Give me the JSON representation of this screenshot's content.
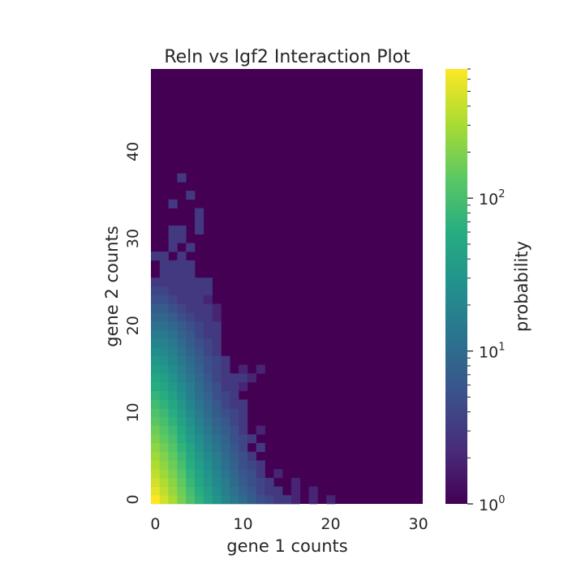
{
  "chart_data": {
    "type": "heatmap",
    "title": "Reln vs Igf2 Interaction Plot",
    "xlabel": "gene 1 counts",
    "ylabel": "gene 2 counts",
    "x_range": [
      0,
      30
    ],
    "y_range": [
      0,
      49
    ],
    "x_ticks": [
      {
        "value": 0,
        "label": "0"
      },
      {
        "value": 10,
        "label": "10"
      },
      {
        "value": 20,
        "label": "20"
      },
      {
        "value": 30,
        "label": "30"
      }
    ],
    "y_ticks": [
      {
        "value": 0,
        "label": "0"
      },
      {
        "value": 10,
        "label": "10"
      },
      {
        "value": 20,
        "label": "20"
      },
      {
        "value": 30,
        "label": "30"
      },
      {
        "value": 40,
        "label": "40"
      }
    ],
    "y_axis_origin": "bottom",
    "grid": false,
    "colormap": "viridis",
    "color_scale": "log",
    "colorbar": {
      "label": "probability",
      "min": 1,
      "max": 700,
      "major_ticks": [
        {
          "value": 1,
          "base": "10",
          "exp": "0"
        },
        {
          "value": 10,
          "base": "10",
          "exp": "1"
        },
        {
          "value": 100,
          "base": "10",
          "exp": "2"
        }
      ],
      "minor_ticks": [
        2,
        3,
        4,
        5,
        6,
        7,
        8,
        9,
        20,
        30,
        40,
        50,
        60,
        70,
        80,
        90,
        200,
        300,
        400,
        500,
        600,
        700
      ]
    },
    "background_value": 1,
    "cells_note_format": "[gene1_count, gene2_count, value]",
    "cells": [
      [
        0,
        0,
        700
      ],
      [
        1,
        0,
        450
      ],
      [
        2,
        0,
        300
      ],
      [
        3,
        0,
        180
      ],
      [
        4,
        0,
        110
      ],
      [
        5,
        0,
        70
      ],
      [
        6,
        0,
        45
      ],
      [
        7,
        0,
        30
      ],
      [
        8,
        0,
        20
      ],
      [
        9,
        0,
        14
      ],
      [
        10,
        0,
        10
      ],
      [
        11,
        0,
        7
      ],
      [
        12,
        0,
        5
      ],
      [
        13,
        0,
        4
      ],
      [
        14,
        0,
        3
      ],
      [
        15,
        0,
        3
      ],
      [
        16,
        0,
        2
      ],
      [
        18,
        0,
        2
      ],
      [
        20,
        0,
        2
      ],
      [
        0,
        1,
        550
      ],
      [
        1,
        1,
        380
      ],
      [
        2,
        1,
        250
      ],
      [
        3,
        1,
        160
      ],
      [
        4,
        1,
        95
      ],
      [
        5,
        1,
        60
      ],
      [
        6,
        1,
        40
      ],
      [
        7,
        1,
        26
      ],
      [
        8,
        1,
        17
      ],
      [
        9,
        1,
        12
      ],
      [
        10,
        1,
        8
      ],
      [
        11,
        1,
        6
      ],
      [
        12,
        1,
        4
      ],
      [
        13,
        1,
        3
      ],
      [
        14,
        1,
        3
      ],
      [
        16,
        1,
        2
      ],
      [
        18,
        1,
        2
      ],
      [
        0,
        2,
        450
      ],
      [
        1,
        2,
        320
      ],
      [
        2,
        2,
        220
      ],
      [
        3,
        2,
        140
      ],
      [
        4,
        2,
        80
      ],
      [
        5,
        2,
        50
      ],
      [
        6,
        2,
        33
      ],
      [
        7,
        2,
        22
      ],
      [
        8,
        2,
        15
      ],
      [
        9,
        2,
        10
      ],
      [
        10,
        2,
        7
      ],
      [
        11,
        2,
        5
      ],
      [
        12,
        2,
        4
      ],
      [
        13,
        2,
        3
      ],
      [
        16,
        2,
        2
      ],
      [
        0,
        3,
        380
      ],
      [
        1,
        3,
        270
      ],
      [
        2,
        3,
        190
      ],
      [
        3,
        3,
        120
      ],
      [
        4,
        3,
        70
      ],
      [
        5,
        3,
        45
      ],
      [
        6,
        3,
        30
      ],
      [
        7,
        3,
        20
      ],
      [
        8,
        3,
        13
      ],
      [
        9,
        3,
        9
      ],
      [
        10,
        3,
        6
      ],
      [
        11,
        3,
        5
      ],
      [
        12,
        3,
        3
      ],
      [
        14,
        3,
        2
      ],
      [
        0,
        4,
        320
      ],
      [
        1,
        4,
        230
      ],
      [
        2,
        4,
        160
      ],
      [
        3,
        4,
        100
      ],
      [
        4,
        4,
        60
      ],
      [
        5,
        4,
        40
      ],
      [
        6,
        4,
        26
      ],
      [
        7,
        4,
        17
      ],
      [
        8,
        4,
        11
      ],
      [
        9,
        4,
        8
      ],
      [
        10,
        4,
        5
      ],
      [
        11,
        4,
        4
      ],
      [
        12,
        4,
        3
      ],
      [
        0,
        5,
        270
      ],
      [
        1,
        5,
        200
      ],
      [
        2,
        5,
        140
      ],
      [
        3,
        5,
        85
      ],
      [
        4,
        5,
        52
      ],
      [
        5,
        5,
        34
      ],
      [
        6,
        5,
        22
      ],
      [
        7,
        5,
        15
      ],
      [
        8,
        5,
        10
      ],
      [
        9,
        5,
        7
      ],
      [
        10,
        5,
        5
      ],
      [
        11,
        5,
        3
      ],
      [
        0,
        6,
        230
      ],
      [
        1,
        6,
        170
      ],
      [
        2,
        6,
        120
      ],
      [
        3,
        6,
        72
      ],
      [
        4,
        6,
        45
      ],
      [
        5,
        6,
        29
      ],
      [
        6,
        6,
        19
      ],
      [
        7,
        6,
        13
      ],
      [
        8,
        6,
        9
      ],
      [
        9,
        6,
        6
      ],
      [
        10,
        6,
        4
      ],
      [
        12,
        6,
        3
      ],
      [
        0,
        7,
        190
      ],
      [
        1,
        7,
        140
      ],
      [
        2,
        7,
        100
      ],
      [
        3,
        7,
        60
      ],
      [
        4,
        7,
        38
      ],
      [
        5,
        7,
        25
      ],
      [
        6,
        7,
        16
      ],
      [
        7,
        7,
        11
      ],
      [
        8,
        7,
        8
      ],
      [
        9,
        7,
        5
      ],
      [
        10,
        7,
        4
      ],
      [
        11,
        7,
        3
      ],
      [
        0,
        8,
        160
      ],
      [
        1,
        8,
        120
      ],
      [
        2,
        8,
        85
      ],
      [
        3,
        8,
        52
      ],
      [
        4,
        8,
        32
      ],
      [
        5,
        8,
        21
      ],
      [
        6,
        8,
        14
      ],
      [
        7,
        8,
        9
      ],
      [
        8,
        8,
        7
      ],
      [
        9,
        8,
        5
      ],
      [
        10,
        8,
        3
      ],
      [
        12,
        8,
        2
      ],
      [
        0,
        9,
        130
      ],
      [
        1,
        9,
        100
      ],
      [
        2,
        9,
        70
      ],
      [
        3,
        9,
        44
      ],
      [
        4,
        9,
        28
      ],
      [
        5,
        9,
        18
      ],
      [
        6,
        9,
        12
      ],
      [
        7,
        9,
        8
      ],
      [
        8,
        9,
        6
      ],
      [
        9,
        9,
        4
      ],
      [
        10,
        9,
        3
      ],
      [
        0,
        10,
        110
      ],
      [
        1,
        10,
        85
      ],
      [
        2,
        10,
        60
      ],
      [
        3,
        10,
        38
      ],
      [
        4,
        10,
        24
      ],
      [
        5,
        10,
        15
      ],
      [
        6,
        10,
        10
      ],
      [
        7,
        10,
        7
      ],
      [
        8,
        10,
        5
      ],
      [
        9,
        10,
        4
      ],
      [
        10,
        10,
        3
      ],
      [
        0,
        11,
        90
      ],
      [
        1,
        11,
        70
      ],
      [
        2,
        11,
        50
      ],
      [
        3,
        11,
        32
      ],
      [
        4,
        11,
        20
      ],
      [
        5,
        11,
        13
      ],
      [
        6,
        11,
        9
      ],
      [
        7,
        11,
        6
      ],
      [
        8,
        11,
        4
      ],
      [
        9,
        11,
        3
      ],
      [
        10,
        11,
        3
      ],
      [
        0,
        12,
        75
      ],
      [
        1,
        12,
        58
      ],
      [
        2,
        12,
        42
      ],
      [
        3,
        12,
        27
      ],
      [
        4,
        12,
        17
      ],
      [
        5,
        12,
        11
      ],
      [
        6,
        12,
        8
      ],
      [
        7,
        12,
        5
      ],
      [
        8,
        12,
        4
      ],
      [
        9,
        12,
        3
      ],
      [
        0,
        13,
        60
      ],
      [
        1,
        13,
        48
      ],
      [
        2,
        13,
        35
      ],
      [
        3,
        13,
        23
      ],
      [
        4,
        13,
        15
      ],
      [
        5,
        13,
        10
      ],
      [
        6,
        13,
        7
      ],
      [
        7,
        13,
        5
      ],
      [
        8,
        13,
        3
      ],
      [
        9,
        13,
        3
      ],
      [
        10,
        13,
        2
      ],
      [
        0,
        14,
        50
      ],
      [
        1,
        14,
        40
      ],
      [
        2,
        14,
        29
      ],
      [
        3,
        14,
        19
      ],
      [
        4,
        14,
        13
      ],
      [
        5,
        14,
        9
      ],
      [
        6,
        14,
        6
      ],
      [
        7,
        14,
        4
      ],
      [
        8,
        14,
        3
      ],
      [
        9,
        14,
        3
      ],
      [
        10,
        14,
        3
      ],
      [
        11,
        14,
        2
      ],
      [
        0,
        15,
        40
      ],
      [
        1,
        15,
        33
      ],
      [
        2,
        15,
        24
      ],
      [
        3,
        15,
        16
      ],
      [
        4,
        15,
        11
      ],
      [
        5,
        15,
        8
      ],
      [
        6,
        15,
        5
      ],
      [
        7,
        15,
        4
      ],
      [
        8,
        15,
        3
      ],
      [
        10,
        15,
        2
      ],
      [
        12,
        15,
        2
      ],
      [
        0,
        16,
        32
      ],
      [
        1,
        16,
        27
      ],
      [
        2,
        16,
        20
      ],
      [
        3,
        16,
        14
      ],
      [
        4,
        16,
        10
      ],
      [
        5,
        16,
        7
      ],
      [
        6,
        16,
        5
      ],
      [
        7,
        16,
        4
      ],
      [
        8,
        16,
        3
      ],
      [
        0,
        17,
        25
      ],
      [
        1,
        17,
        22
      ],
      [
        2,
        17,
        17
      ],
      [
        3,
        17,
        12
      ],
      [
        4,
        17,
        8
      ],
      [
        5,
        17,
        6
      ],
      [
        6,
        17,
        4
      ],
      [
        7,
        17,
        3
      ],
      [
        0,
        18,
        20
      ],
      [
        1,
        18,
        18
      ],
      [
        2,
        18,
        14
      ],
      [
        3,
        18,
        10
      ],
      [
        4,
        18,
        7
      ],
      [
        5,
        18,
        5
      ],
      [
        6,
        18,
        4
      ],
      [
        7,
        18,
        3
      ],
      [
        0,
        19,
        15
      ],
      [
        1,
        19,
        14
      ],
      [
        2,
        19,
        11
      ],
      [
        3,
        19,
        8
      ],
      [
        4,
        19,
        6
      ],
      [
        5,
        19,
        4
      ],
      [
        6,
        19,
        3
      ],
      [
        7,
        19,
        3
      ],
      [
        0,
        20,
        12
      ],
      [
        1,
        20,
        11
      ],
      [
        2,
        20,
        9
      ],
      [
        3,
        20,
        7
      ],
      [
        4,
        20,
        5
      ],
      [
        5,
        20,
        4
      ],
      [
        6,
        20,
        3
      ],
      [
        7,
        20,
        3
      ],
      [
        0,
        21,
        9
      ],
      [
        1,
        21,
        9
      ],
      [
        2,
        21,
        7
      ],
      [
        3,
        21,
        5
      ],
      [
        4,
        21,
        4
      ],
      [
        5,
        21,
        3
      ],
      [
        6,
        21,
        3
      ],
      [
        7,
        21,
        2
      ],
      [
        0,
        22,
        7
      ],
      [
        1,
        22,
        7
      ],
      [
        2,
        22,
        5
      ],
      [
        3,
        22,
        4
      ],
      [
        4,
        22,
        3
      ],
      [
        5,
        22,
        3
      ],
      [
        6,
        22,
        3
      ],
      [
        7,
        22,
        2
      ],
      [
        0,
        23,
        5
      ],
      [
        1,
        23,
        5
      ],
      [
        2,
        23,
        4
      ],
      [
        3,
        23,
        3
      ],
      [
        4,
        23,
        3
      ],
      [
        5,
        23,
        3
      ],
      [
        6,
        23,
        2
      ],
      [
        0,
        24,
        4
      ],
      [
        1,
        24,
        4
      ],
      [
        2,
        24,
        3
      ],
      [
        3,
        24,
        3
      ],
      [
        4,
        24,
        3
      ],
      [
        5,
        24,
        3
      ],
      [
        6,
        24,
        3
      ],
      [
        0,
        25,
        3
      ],
      [
        1,
        25,
        3
      ],
      [
        2,
        25,
        3
      ],
      [
        3,
        25,
        3
      ],
      [
        4,
        25,
        3
      ],
      [
        5,
        25,
        3
      ],
      [
        6,
        25,
        3
      ],
      [
        1,
        26,
        3
      ],
      [
        2,
        26,
        3
      ],
      [
        3,
        26,
        3
      ],
      [
        4,
        26,
        3
      ],
      [
        1,
        27,
        3
      ],
      [
        2,
        27,
        3
      ],
      [
        3,
        27,
        3
      ],
      [
        4,
        27,
        3
      ],
      [
        0,
        28,
        3
      ],
      [
        1,
        28,
        3
      ],
      [
        3,
        28,
        3
      ],
      [
        2,
        29,
        3
      ],
      [
        4,
        29,
        3
      ],
      [
        2,
        30,
        3
      ],
      [
        3,
        30,
        3
      ],
      [
        2,
        31,
        3
      ],
      [
        3,
        31,
        3
      ],
      [
        5,
        31,
        3
      ],
      [
        5,
        32,
        3
      ],
      [
        5,
        33,
        3
      ],
      [
        2,
        34,
        3
      ],
      [
        4,
        35,
        3
      ],
      [
        3,
        37,
        3
      ]
    ]
  }
}
